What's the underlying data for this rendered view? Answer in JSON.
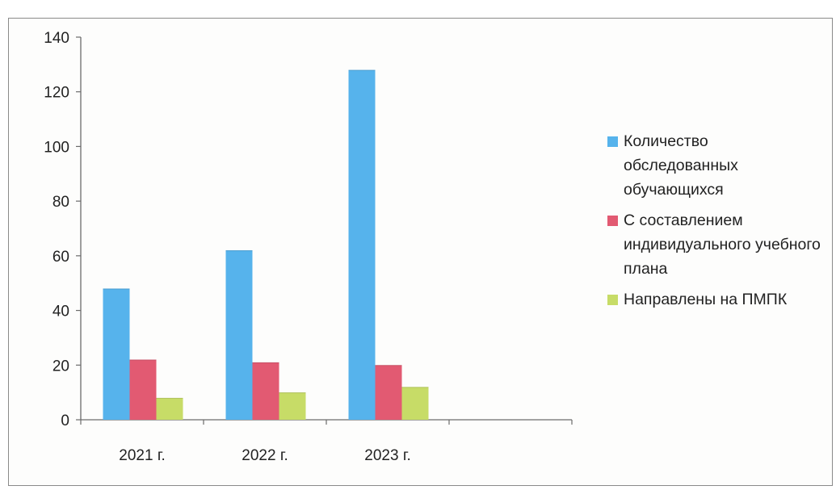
{
  "chart_data": {
    "type": "bar",
    "categories": [
      "2021 г.",
      "2022 г.",
      "2023 г."
    ],
    "series": [
      {
        "name": "Количество обследованных обучающихся",
        "values": [
          48,
          62,
          128
        ],
        "color": "#56b3ec"
      },
      {
        "name": "С составлением индивидуального учебного плана",
        "values": [
          22,
          21,
          20
        ],
        "color": "#e25a72"
      },
      {
        "name": "Направлены на ПМПК",
        "values": [
          8,
          10,
          12
        ],
        "color": "#c7dc67"
      }
    ],
    "yticks": [
      "0",
      "20",
      "40",
      "60",
      "80",
      "100",
      "120",
      "140"
    ],
    "ylim": [
      0,
      140
    ],
    "slots": 4,
    "legend_position": "right",
    "grid": false
  }
}
